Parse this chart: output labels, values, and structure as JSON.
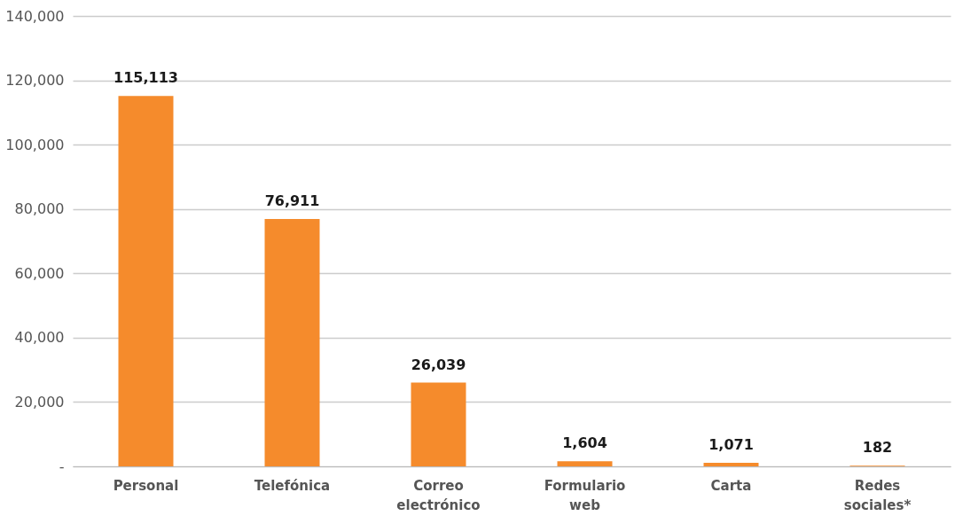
{
  "chart_data": {
    "type": "bar",
    "categories": [
      "Personal",
      "Telefónica",
      "Correo electrónico",
      "Formulario web",
      "Carta",
      "Redes sociales*"
    ],
    "values": [
      115113,
      76911,
      26039,
      1604,
      1071,
      182
    ],
    "value_labels": [
      "115,113",
      "76,911",
      "26,039",
      "1,604",
      "1,071",
      "182"
    ],
    "color": "#f58b2c",
    "ylim": [
      0,
      140000
    ],
    "yticks": [
      {
        "value": 0,
        "label": "-"
      },
      {
        "value": 20000,
        "label": "20,000"
      },
      {
        "value": 40000,
        "label": "40,000"
      },
      {
        "value": 60000,
        "label": "60,000"
      },
      {
        "value": 80000,
        "label": "80,000"
      },
      {
        "value": 100000,
        "label": "100,000"
      },
      {
        "value": 120000,
        "label": "120,000"
      },
      {
        "value": 140000,
        "label": "140,000"
      }
    ],
    "grid": "y"
  }
}
